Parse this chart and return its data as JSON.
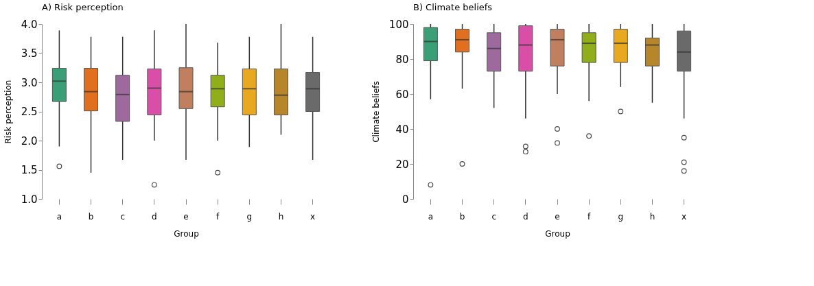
{
  "chart_data": [
    {
      "type": "box",
      "title": "A) Risk perception",
      "xlabel": "Group",
      "ylabel": "Risk perception",
      "categories": [
        "a",
        "b",
        "c",
        "d",
        "e",
        "f",
        "g",
        "h",
        "x"
      ],
      "colors": [
        "#3a9e77",
        "#e07020",
        "#9e6a9e",
        "#d94fa8",
        "#c08060",
        "#8fae1a",
        "#e8a820",
        "#b8862a",
        "#6a6a6a"
      ],
      "boxes": [
        {
          "low": 1.9,
          "q1": 2.67,
          "median": 3.02,
          "q3": 3.24,
          "high": 3.89,
          "outliers": [
            1.56
          ]
        },
        {
          "low": 1.45,
          "q1": 2.51,
          "median": 2.84,
          "q3": 3.24,
          "high": 3.78
        },
        {
          "low": 1.67,
          "q1": 2.33,
          "median": 2.79,
          "q3": 3.12,
          "high": 3.78
        },
        {
          "low": 2.0,
          "q1": 2.44,
          "median": 2.9,
          "q3": 3.23,
          "high": 3.89,
          "outliers": [
            1.24
          ]
        },
        {
          "low": 1.67,
          "q1": 2.55,
          "median": 2.84,
          "q3": 3.25,
          "high": 4.0
        },
        {
          "low": 2.0,
          "q1": 2.58,
          "median": 2.89,
          "q3": 3.12,
          "high": 3.68,
          "outliers": [
            1.45
          ]
        },
        {
          "low": 1.89,
          "q1": 2.44,
          "median": 2.89,
          "q3": 3.23,
          "high": 3.78
        },
        {
          "low": 2.1,
          "q1": 2.44,
          "median": 2.78,
          "q3": 3.23,
          "high": 4.0
        },
        {
          "low": 1.67,
          "q1": 2.5,
          "median": 2.89,
          "q3": 3.17,
          "high": 3.78
        }
      ],
      "ylim": [
        1.0,
        4.0
      ],
      "yticks": [
        {
          "value": 1,
          "label": "1.0"
        },
        {
          "value": 1.5,
          "label": "1.5"
        },
        {
          "value": 2,
          "label": "2.0"
        },
        {
          "value": 2.5,
          "label": "2.5"
        },
        {
          "value": 3,
          "label": "3.0"
        },
        {
          "value": 3.5,
          "label": "3.5"
        },
        {
          "value": 4,
          "label": "4.0"
        }
      ],
      "grid": false,
      "legend": false
    },
    {
      "type": "box",
      "title": "B) Climate beliefs",
      "xlabel": "Group",
      "ylabel": "Climate beliefs",
      "categories": [
        "a",
        "b",
        "c",
        "d",
        "e",
        "f",
        "g",
        "h",
        "x"
      ],
      "colors": [
        "#3a9e77",
        "#e07020",
        "#9e6a9e",
        "#d94fa8",
        "#c08060",
        "#8fae1a",
        "#e8a820",
        "#b8862a",
        "#6a6a6a"
      ],
      "boxes": [
        {
          "low": 57,
          "q1": 79,
          "median": 90,
          "q3": 98,
          "high": 100,
          "outliers": [
            8
          ]
        },
        {
          "low": 63,
          "q1": 84,
          "median": 91,
          "q3": 97,
          "high": 100,
          "outliers": [
            20
          ]
        },
        {
          "low": 52,
          "q1": 73,
          "median": 86,
          "q3": 95,
          "high": 100
        },
        {
          "low": 46,
          "q1": 73,
          "median": 88,
          "q3": 99,
          "high": 100,
          "outliers": [
            30,
            27
          ]
        },
        {
          "low": 60,
          "q1": 76,
          "median": 91,
          "q3": 97,
          "high": 100,
          "outliers": [
            40,
            32
          ]
        },
        {
          "low": 56,
          "q1": 78,
          "median": 89,
          "q3": 95,
          "high": 100,
          "outliers": [
            36
          ]
        },
        {
          "low": 64,
          "q1": 78,
          "median": 89,
          "q3": 97,
          "high": 100,
          "outliers": [
            50
          ]
        },
        {
          "low": 55,
          "q1": 76,
          "median": 88,
          "q3": 92,
          "high": 100
        },
        {
          "low": 46,
          "q1": 73,
          "median": 84,
          "q3": 96,
          "high": 100,
          "outliers": [
            35,
            21,
            16
          ]
        }
      ],
      "ylim": [
        0,
        100
      ],
      "yticks": [
        0,
        20,
        40,
        60,
        80,
        100
      ],
      "grid": false,
      "legend": false
    }
  ]
}
